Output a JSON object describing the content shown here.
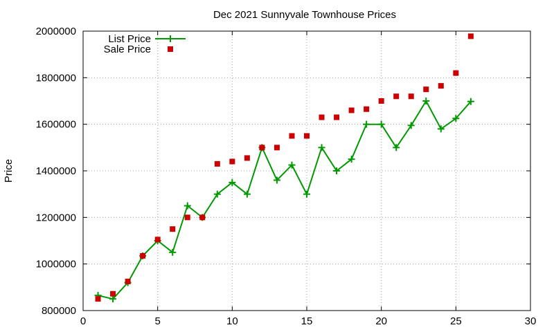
{
  "chart_data": {
    "type": "scatter",
    "title": "Dec 2021 Sunnyvale Townhouse Prices",
    "xlabel": "",
    "ylabel": "Price",
    "xlim": [
      0,
      30
    ],
    "ylim": [
      800000,
      2000000
    ],
    "xticks": [
      0,
      5,
      10,
      15,
      20,
      25,
      30
    ],
    "yticks": [
      800000,
      1000000,
      1200000,
      1400000,
      1600000,
      1800000,
      2000000
    ],
    "grid": true,
    "legend_position": "top-left",
    "series": [
      {
        "name": "List Price",
        "style": "line-with-plus-markers",
        "color": "#009900",
        "x": [
          1,
          2,
          3,
          4,
          5,
          6,
          7,
          8,
          9,
          10,
          11,
          12,
          13,
          14,
          15,
          16,
          17,
          18,
          19,
          20,
          21,
          22,
          23,
          24,
          25,
          26
        ],
        "y": [
          865000,
          850000,
          920000,
          1035000,
          1100000,
          1050000,
          1250000,
          1200000,
          1300000,
          1350000,
          1300000,
          1500000,
          1360000,
          1425000,
          1300000,
          1500000,
          1400000,
          1450000,
          1600000,
          1600000,
          1500000,
          1595000,
          1700000,
          1580000,
          1625000,
          1698000
        ]
      },
      {
        "name": "Sale Price",
        "style": "square-markers",
        "color": "#cc0000",
        "x": [
          1,
          2,
          3,
          4,
          5,
          6,
          7,
          8,
          9,
          10,
          11,
          12,
          13,
          14,
          15,
          16,
          17,
          18,
          19,
          20,
          21,
          22,
          23,
          24,
          25,
          26
        ],
        "y": [
          850000,
          872000,
          925000,
          1035000,
          1105000,
          1150000,
          1200000,
          1200000,
          1430000,
          1440000,
          1455000,
          1500000,
          1500000,
          1550000,
          1550000,
          1630000,
          1630000,
          1660000,
          1665000,
          1700000,
          1720000,
          1720000,
          1750000,
          1765000,
          1820000,
          1978000
        ]
      }
    ]
  }
}
